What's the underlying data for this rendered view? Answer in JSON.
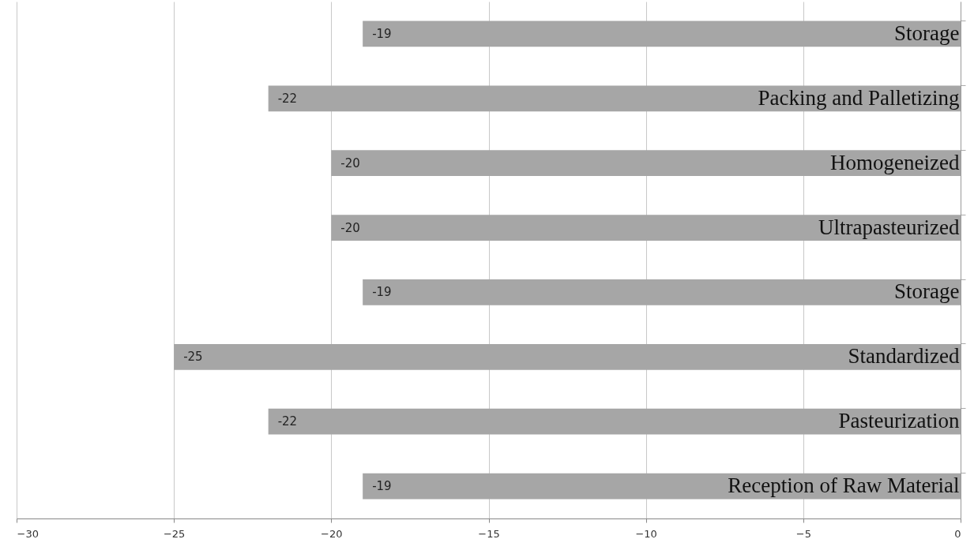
{
  "chart_data": {
    "type": "bar",
    "orientation": "horizontal",
    "categories": [
      "Storage",
      "Packing and Palletizing",
      "Homogeneized",
      "Ultrapasteurized",
      "Storage",
      "Standardized",
      "Pasteurization",
      "Reception of Raw Material"
    ],
    "values": [
      -19,
      -22,
      -20,
      -20,
      -19,
      -25,
      -22,
      -19
    ],
    "color": "#a6a6a6",
    "xlim": [
      -30,
      0
    ],
    "xticks": [
      -30,
      -25,
      -20,
      -15,
      -10,
      -5,
      0
    ],
    "grid": "x",
    "data_labels": true
  }
}
